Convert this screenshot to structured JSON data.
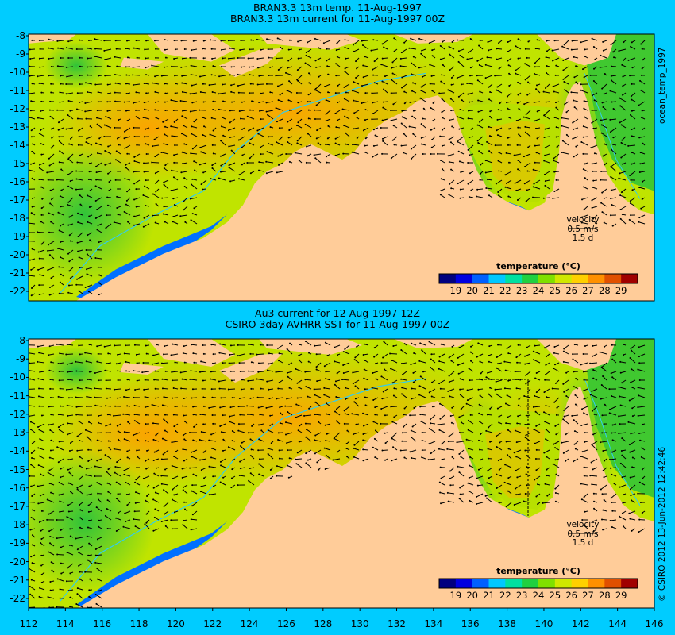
{
  "titles": {
    "top_line1": "BRAN3.3 13m temp. 11-Aug-1997",
    "top_line2": "BRAN3.3 13m current for 11-Aug-1997 00Z",
    "bottom_line1": "Au3 current for 12-Aug-1997 12Z",
    "bottom_line2": "CSIRO 3day AVHRR SST for 11-Aug-1997 00Z"
  },
  "side_labels": {
    "top": "ocean_temp_1997",
    "bottom": "© CSIRO 2012  13-Jun-2012 12:42:46"
  },
  "velocity_key": {
    "label": "velocity",
    "speed": "0.5 m/s",
    "duration": "1.5 d"
  },
  "colorbar": {
    "title": "temperature (°C)",
    "ticks": [
      "19",
      "20",
      "21",
      "22",
      "23",
      "24",
      "25",
      "26",
      "27",
      "28",
      "29"
    ],
    "colors": [
      "#00007f",
      "#0000e0",
      "#0060ff",
      "#00c8ff",
      "#00e0a0",
      "#20d040",
      "#80e000",
      "#d0e800",
      "#ffd000",
      "#ff9000",
      "#e05000",
      "#a00000"
    ]
  },
  "axes": {
    "y_ticks": [
      "-8",
      "-9",
      "-10",
      "-11",
      "-12",
      "-13",
      "-14",
      "-15",
      "-16",
      "-17",
      "-18",
      "-19",
      "-20",
      "-21",
      "-22"
    ],
    "x_ticks": [
      "112",
      "114",
      "116",
      "118",
      "120",
      "122",
      "124",
      "126",
      "128",
      "130",
      "132",
      "134",
      "136",
      "138",
      "140",
      "142",
      "144",
      "146"
    ]
  },
  "colors": {
    "background": "#00ccff",
    "land": "#ffcc99",
    "sea_warm": "#ffb000",
    "sea_mid": "#a8e000",
    "sea_cool": "#20c040",
    "sea_cold": "#0070ff"
  }
}
